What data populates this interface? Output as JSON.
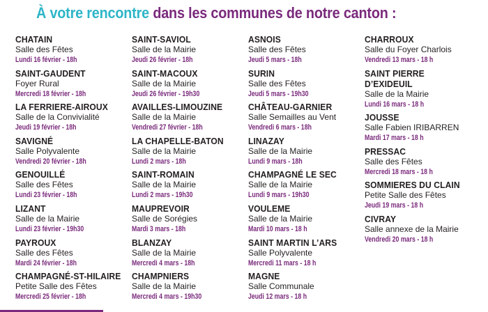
{
  "header": {
    "title_part1": "À votre rencontre",
    "title_part2": "dans les communes de notre canton :"
  },
  "columns": [
    [
      {
        "commune": "CHATAIN",
        "venue": "Salle des Fêtes",
        "date": "Lundi 16 février - 18h"
      },
      {
        "commune": "SAINT-GAUDENT",
        "venue": "Foyer Rural",
        "date": "Mercredi 18 février - 18h"
      },
      {
        "commune": "LA FERRIERE-AIROUX",
        "venue": "Salle de la Convivialité",
        "date": "Jeudi 19 février - 18h"
      },
      {
        "commune": "SAVIGNÉ",
        "venue": "Salle Polyvalente",
        "date": "Vendredi 20 février - 18h"
      },
      {
        "commune": "GENOUILLÉ",
        "venue": "Salle des Fêtes",
        "date": "Lundi 23 février - 18h"
      },
      {
        "commune": "LIZANT",
        "venue": "Salle de la Mairie",
        "date": "Lundi 23 février - 19h30"
      },
      {
        "commune": "PAYROUX",
        "venue": "Salle des Fêtes",
        "date": "Mardi 24 février - 18h"
      },
      {
        "commune": "CHAMPAGNÉ-ST-HILAIRE",
        "venue": "Petite Salle des Fêtes",
        "date": "Mercredi 25 février - 18h"
      }
    ],
    [
      {
        "commune": "SAINT-SAVIOL",
        "venue": "Salle de la Mairie",
        "date": "Jeudi 26 février - 18h"
      },
      {
        "commune": "SAINT-MACOUX",
        "venue": "Salle de la Mairie",
        "date": "Jeudi 26 février - 19h30"
      },
      {
        "commune": "AVAILLES-LIMOUZINE",
        "venue": "Salle de la Mairie",
        "date": "Vendredi 27 février - 18h"
      },
      {
        "commune": "LA CHAPELLE-BATON",
        "venue": "Salle de la Mairie",
        "date": "Lundi 2 mars - 18h"
      },
      {
        "commune": "SAINT-ROMAIN",
        "venue": "Salle de la Mairie",
        "date": "Lundi 2 mars - 19h30"
      },
      {
        "commune": "MAUPREVOIR",
        "venue": "Salle de Sorégies",
        "date": "Mardi 3 mars - 18h"
      },
      {
        "commune": "BLANZAY",
        "venue": "Salle de la Mairie",
        "date": "Mercredi 4 mars - 18h"
      },
      {
        "commune": "CHAMPNIERS",
        "venue": "Salle de la Mairie",
        "date": "Mercredi 4 mars - 19h30"
      }
    ],
    [
      {
        "commune": "ASNOIS",
        "venue": "Salle des Fêtes",
        "date": "Jeudi 5 mars - 18h"
      },
      {
        "commune": "SURIN",
        "venue": "Salle des Fêtes",
        "date": "Jeudi 5 mars - 19h30"
      },
      {
        "commune": "CHÂTEAU-GARNIER",
        "venue": "Salle Semailles au Vent",
        "date": "Vendredi 6 mars - 18h"
      },
      {
        "commune": "LINAZAY",
        "venue": "Salle de la Mairie",
        "date": "Lundi 9 mars - 18h"
      },
      {
        "commune": "CHAMPAGNÉ LE SEC",
        "venue": "Salle de la Mairie",
        "date": "Lundi 9 mars - 19h30"
      },
      {
        "commune": "VOULEME",
        "venue": "Salle de la Mairie",
        "date": "Mardi 10 mars - 18 h"
      },
      {
        "commune": "SAINT MARTIN L’ARS",
        "venue": "Salle Polyvalente",
        "date": "Mercredi 11 mars - 18 h"
      },
      {
        "commune": "MAGNE",
        "venue": "Salle Communale",
        "date": "Jeudi 12 mars - 18 h"
      }
    ],
    [
      {
        "commune": "CHARROUX",
        "venue": "Salle du Foyer Charlois",
        "date": "Vendredi 13 mars - 18 h"
      },
      {
        "commune": "SAINT PIERRE D’EXIDEUIL",
        "venue": "Salle de la Mairie",
        "date": "Lundi 16 mars - 18 h"
      },
      {
        "commune": "JOUSSE",
        "venue": "Salle Fabien IRIBARREN",
        "date": "Mardi 17 mars - 18 h"
      },
      {
        "commune": "PRESSAC",
        "venue": "Salle des Fêtes",
        "date": "Mercredi 18 mars - 18 h"
      },
      {
        "commune": "SOMMIERES DU CLAIN",
        "venue": "Petite Salle des Fêtes",
        "date": "Jeudi 19 mars - 18 h"
      },
      {
        "commune": "CIVRAY",
        "venue": "Salle annexe de la Mairie",
        "date": "Vendredi 20 mars - 18 h"
      }
    ]
  ]
}
